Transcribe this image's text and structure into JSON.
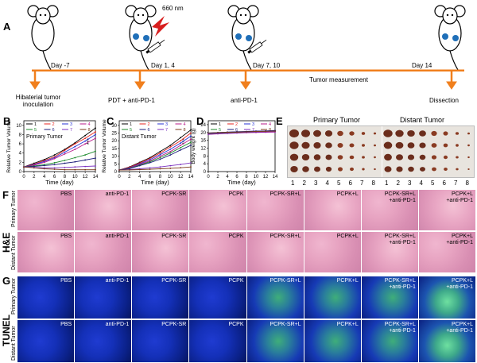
{
  "panels": {
    "A": "A",
    "B": "B",
    "C": "C",
    "D": "D",
    "E": "E",
    "F": "F",
    "G": "G"
  },
  "schedule": {
    "laser": "660 nm",
    "days": [
      "Day -7",
      "Day 1, 4",
      "Day 7, 10",
      "Day 14"
    ],
    "steps": [
      "Hibaterial tumor\ninoculation",
      "PDT + anti-PD-1",
      "anti-PD-1",
      "Dissection"
    ],
    "measurement": "Tumor measurement"
  },
  "charts": {
    "legend_numbers": [
      "1",
      "2",
      "3",
      "4",
      "5",
      "6",
      "7",
      "8"
    ],
    "legend_colors": [
      "#000000",
      "#e8231c",
      "#2431d6",
      "#b8188a",
      "#1b8a2a",
      "#1c1c7a",
      "#7a2fbf",
      "#7a3a1a"
    ]
  },
  "chart_data": [
    {
      "type": "line",
      "title": "Primary Tumor",
      "xlabel": "Time (day)",
      "ylabel": "Relative Tumor Volume",
      "x": [
        0,
        2,
        4,
        6,
        8,
        10,
        12,
        14
      ],
      "xticks": [
        "0",
        "2",
        "4",
        "6",
        "8",
        "10",
        "12",
        "14"
      ],
      "yticks": [
        "0",
        "2",
        "4",
        "6",
        "8",
        "10"
      ],
      "ylim": [
        0,
        11
      ],
      "annotation": "***",
      "series": [
        {
          "name": "1",
          "values": [
            1,
            1.8,
            2.6,
            3.6,
            4.8,
            6.2,
            7.8,
            9.4
          ]
        },
        {
          "name": "2",
          "values": [
            1,
            1.6,
            2.4,
            3.2,
            4.6,
            6.0,
            7.2,
            8.6
          ]
        },
        {
          "name": "3",
          "values": [
            1,
            1.5,
            2.2,
            3.0,
            4.2,
            5.4,
            6.6,
            8.0
          ]
        },
        {
          "name": "4",
          "values": [
            1,
            1.4,
            2.0,
            2.8,
            3.8,
            4.8,
            6.0,
            7.2
          ]
        },
        {
          "name": "5",
          "values": [
            1,
            1.2,
            1.5,
            1.9,
            2.4,
            3.0,
            3.6,
            4.4
          ]
        },
        {
          "name": "6",
          "values": [
            1,
            1.1,
            1.3,
            1.5,
            1.8,
            2.1,
            2.5,
            2.9
          ]
        },
        {
          "name": "7",
          "values": [
            1,
            0.9,
            0.8,
            0.8,
            0.9,
            1.0,
            1.1,
            1.2
          ]
        },
        {
          "name": "8",
          "values": [
            1,
            0.8,
            0.6,
            0.5,
            0.4,
            0.4,
            0.4,
            0.4
          ]
        }
      ]
    },
    {
      "type": "line",
      "title": "Distant Tumor",
      "xlabel": "Time (day)",
      "ylabel": "Relative Tumor Volume",
      "x": [
        0,
        2,
        4,
        6,
        8,
        10,
        12,
        14
      ],
      "xticks": [
        "0",
        "2",
        "4",
        "6",
        "8",
        "10",
        "12",
        "14"
      ],
      "yticks": [
        "0",
        "5",
        "10",
        "15",
        "20",
        "25",
        "30"
      ],
      "ylim": [
        0,
        33
      ],
      "annotation": "***",
      "series": [
        {
          "name": "1",
          "values": [
            1,
            3,
            6,
            9,
            13,
            17,
            22,
            27
          ]
        },
        {
          "name": "2",
          "values": [
            1,
            2.8,
            5.5,
            8.5,
            12,
            16,
            20,
            25
          ]
        },
        {
          "name": "3",
          "values": [
            1,
            2.5,
            5,
            7.8,
            11,
            14.5,
            18.5,
            23
          ]
        },
        {
          "name": "4",
          "values": [
            1,
            2.3,
            4.6,
            7,
            10,
            13,
            17,
            21
          ]
        },
        {
          "name": "5",
          "values": [
            1,
            2.1,
            4.2,
            6.4,
            9,
            12,
            15.5,
            19
          ]
        },
        {
          "name": "6",
          "values": [
            1,
            1.9,
            3.8,
            5.8,
            8,
            10.8,
            14,
            17
          ]
        },
        {
          "name": "7",
          "values": [
            1,
            1.3,
            1.8,
            2.4,
            3.0,
            3.8,
            4.6,
            5.6
          ]
        },
        {
          "name": "8",
          "values": [
            1,
            1.1,
            1.3,
            1.5,
            1.8,
            2.1,
            2.5,
            3.0
          ]
        }
      ]
    },
    {
      "type": "line",
      "title": "",
      "xlabel": "Time (day)",
      "ylabel": "Body weight (g)",
      "x": [
        0,
        2,
        4,
        6,
        8,
        10,
        12,
        14
      ],
      "xticks": [
        "0",
        "2",
        "4",
        "6",
        "8",
        "10",
        "12",
        "14"
      ],
      "yticks": [
        "0",
        "4",
        "8",
        "12",
        "16",
        "20",
        "24"
      ],
      "ylim": [
        0,
        26
      ],
      "series": [
        {
          "name": "1",
          "values": [
            19.5,
            19.8,
            20.0,
            20.2,
            20.3,
            20.5,
            20.6,
            20.8
          ]
        },
        {
          "name": "2",
          "values": [
            19.2,
            19.5,
            19.8,
            20.0,
            20.1,
            20.3,
            20.4,
            20.5
          ]
        },
        {
          "name": "3",
          "values": [
            19.8,
            20.0,
            20.1,
            20.3,
            20.4,
            20.6,
            20.7,
            20.9
          ]
        },
        {
          "name": "4",
          "values": [
            19.0,
            19.3,
            19.5,
            19.7,
            19.9,
            20.0,
            20.1,
            20.2
          ]
        },
        {
          "name": "5",
          "values": [
            19.4,
            19.6,
            19.9,
            20.1,
            20.2,
            20.4,
            20.5,
            20.6
          ]
        },
        {
          "name": "6",
          "values": [
            19.6,
            19.9,
            20.2,
            20.4,
            20.5,
            20.7,
            20.8,
            21.0
          ]
        },
        {
          "name": "7",
          "values": [
            19.1,
            19.4,
            19.6,
            19.8,
            20.0,
            20.2,
            20.3,
            20.4
          ]
        },
        {
          "name": "8",
          "values": [
            19.7,
            19.9,
            20.1,
            20.2,
            20.3,
            20.5,
            20.6,
            20.7
          ]
        }
      ]
    }
  ],
  "tumor_photo": {
    "primary": "Primary Tumor",
    "distant": "Distant Tumor",
    "numbers": [
      "1",
      "2",
      "3",
      "4",
      "5",
      "6",
      "7",
      "8"
    ]
  },
  "histology": {
    "he_label": "H&E",
    "tunel_label": "TUNEL",
    "primary": "Primary Tumor",
    "distant": "Distant Tumor",
    "groups": [
      "PBS",
      "anti-PD-1",
      "PCPK-SR",
      "PCPK",
      "PCPK-SR+L",
      "PCPK+L",
      "PCPK-SR+L\n+anti-PD-1",
      "PCPK+L\n+anti-PD-1"
    ]
  }
}
